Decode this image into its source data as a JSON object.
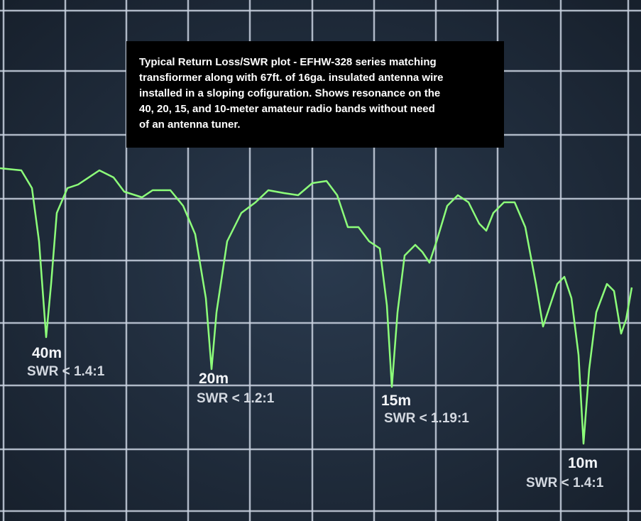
{
  "caption": {
    "lines": [
      "Typical Return Loss/SWR plot - EFHW-328 series matching",
      "transfiormer along with 67ft. of 16ga. insulated antenna wire",
      "installed in a sloping cofiguration. Shows resonance on the",
      "40, 20, 15, and 10-meter amateur radio bands without need",
      "of an antenna tuner."
    ]
  },
  "markers": [
    {
      "band": "40m",
      "swr": "SWR < 1.4:1"
    },
    {
      "band": "20m",
      "swr": "SWR < 1.2:1"
    },
    {
      "band": "15m",
      "swr": "SWR < 1.19:1"
    },
    {
      "band": "10m",
      "swr": "SWR < 1.4:1"
    }
  ]
}
